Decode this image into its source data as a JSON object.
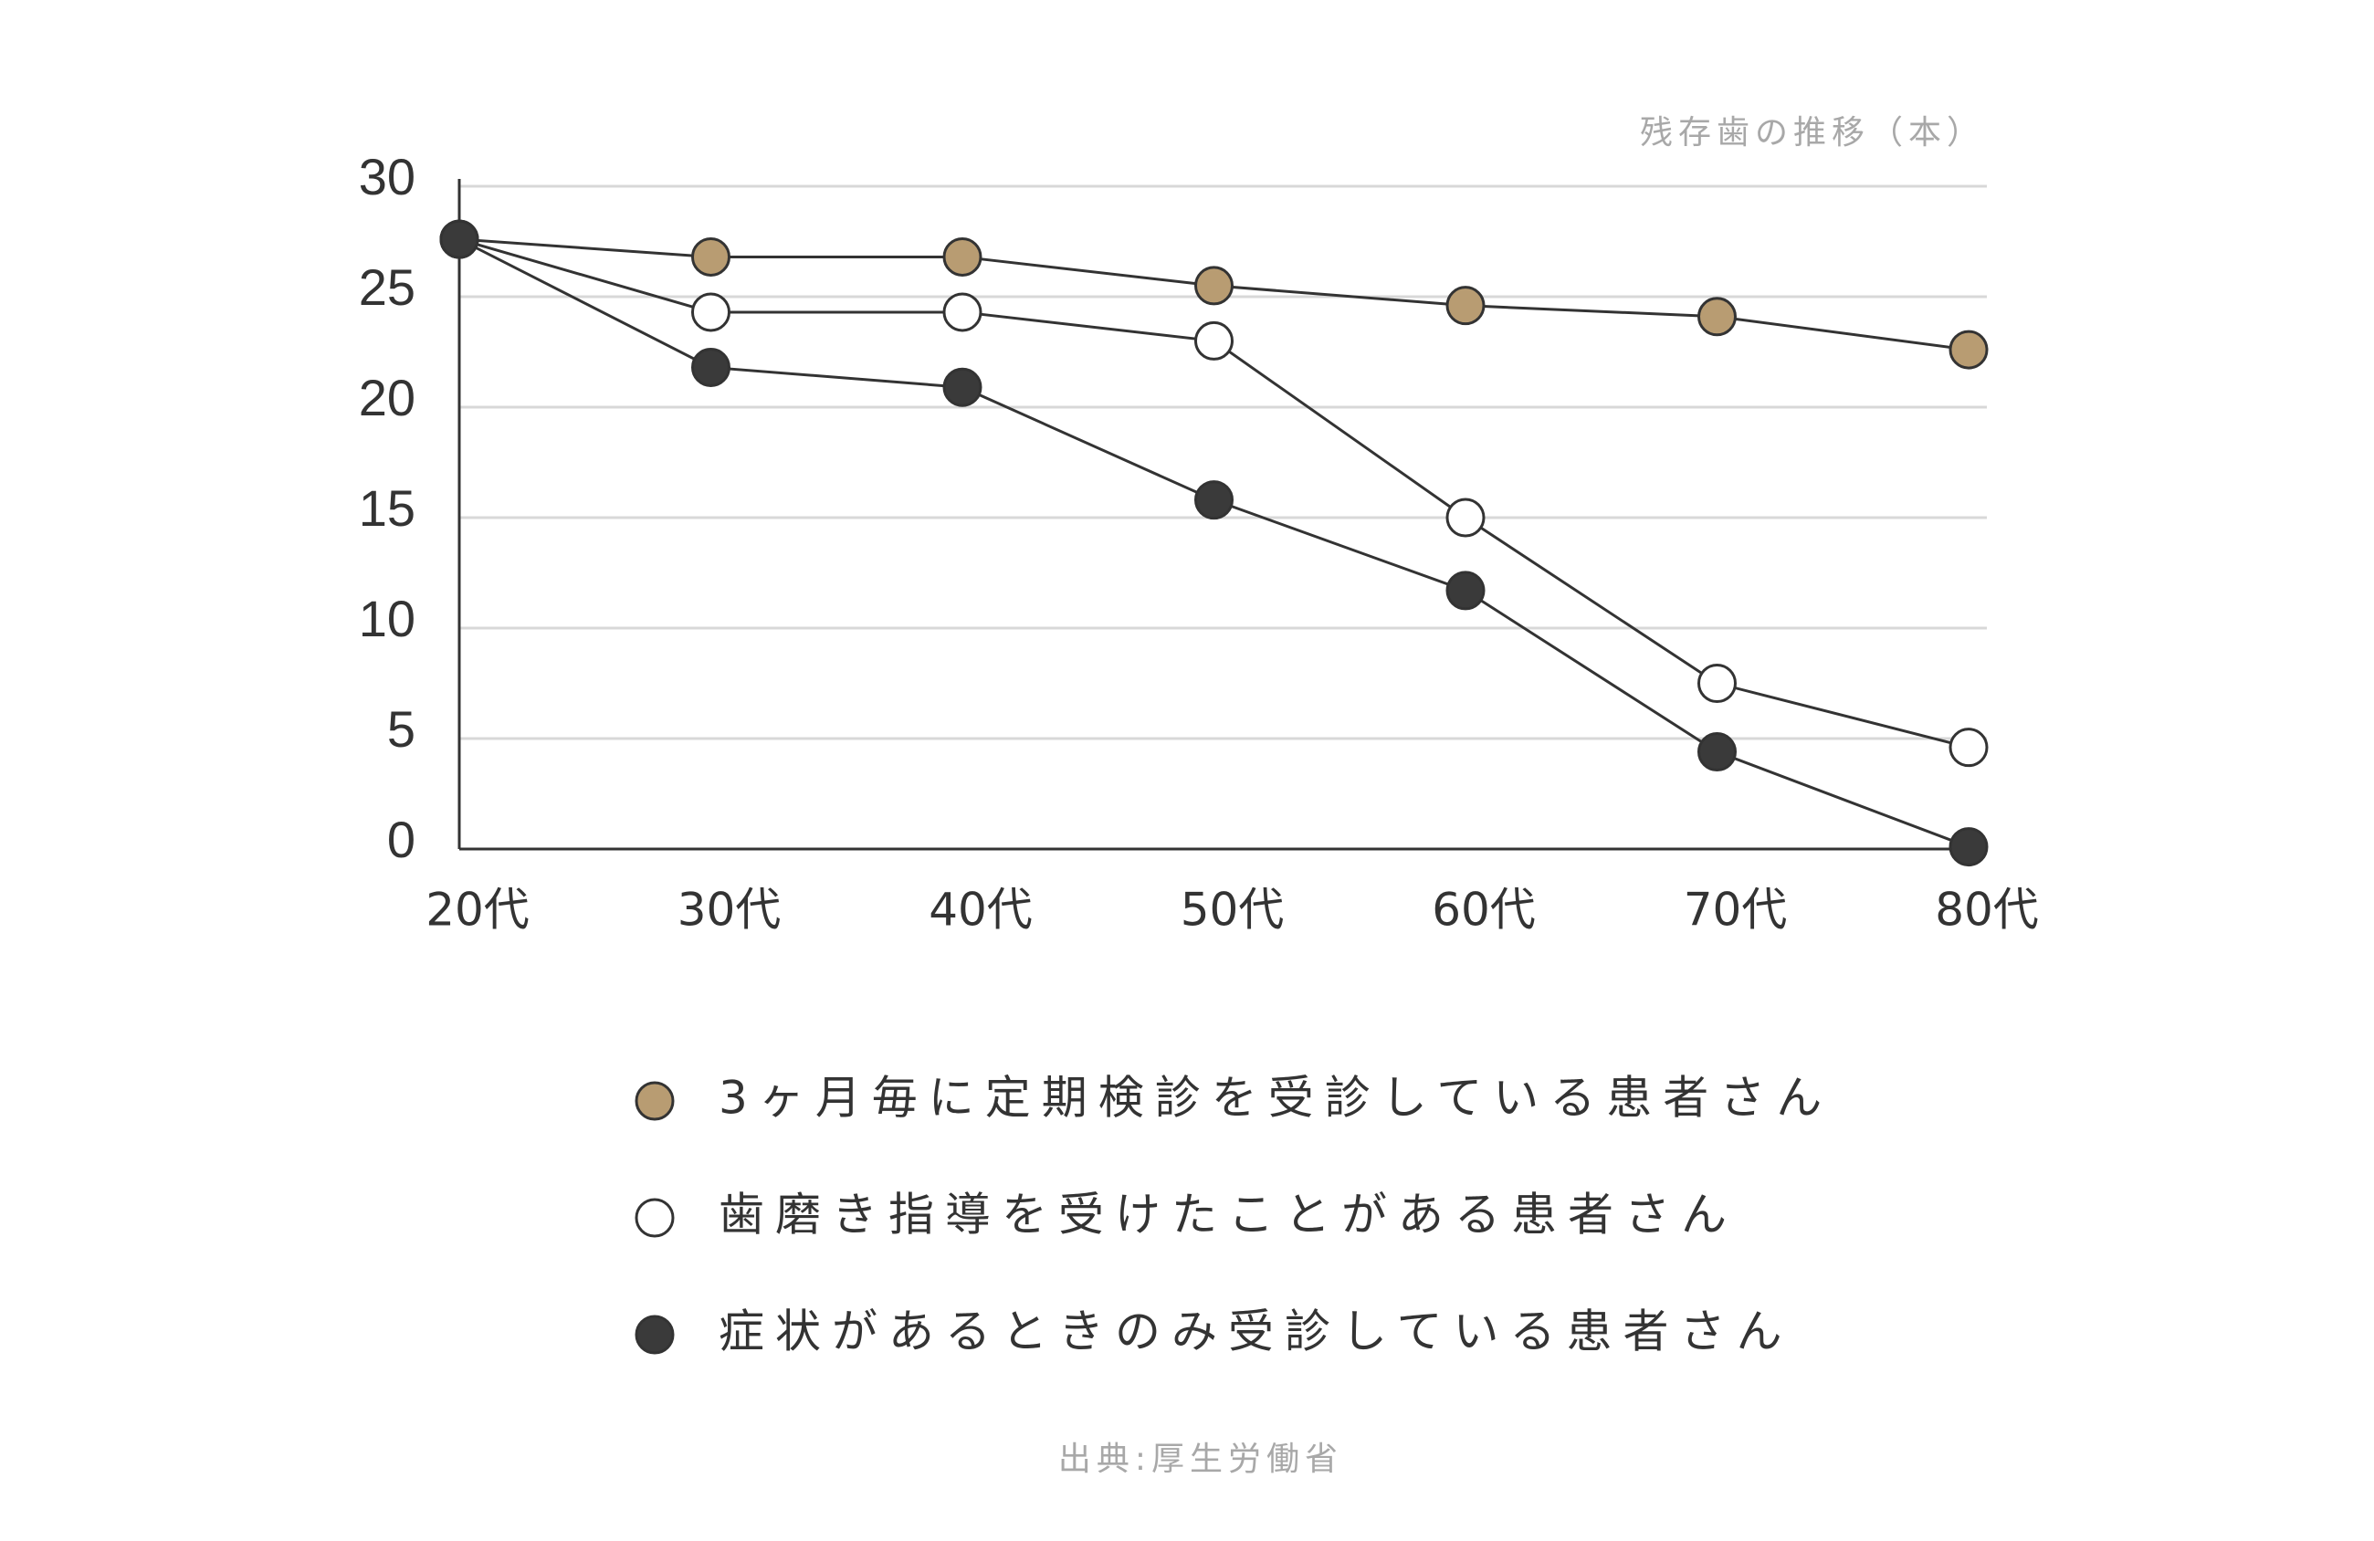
{
  "chart_data": {
    "type": "line",
    "ylabel": "残存歯の推移（本）",
    "source": "出典:厚生労働省",
    "categories": [
      "20代",
      "30代",
      "40代",
      "50代",
      "60代",
      "70代",
      "80代"
    ],
    "series": [
      {
        "name": "3ヶ月毎に定期検診を受診している患者さん",
        "color": "#b89c72",
        "values": [
          27.6,
          26.8,
          26.8,
          25.5,
          24.6,
          24.1,
          22.6
        ]
      },
      {
        "name": "歯磨き指導を受けたことがある患者さん",
        "color": "#ffffff",
        "values": [
          27.6,
          24.3,
          24.3,
          23.0,
          15.0,
          7.5,
          4.6
        ]
      },
      {
        "name": "症状があるときのみ受診している患者さん",
        "color": "#3a3a3a",
        "values": [
          27.6,
          21.8,
          20.9,
          15.8,
          11.7,
          4.4,
          0.1
        ]
      }
    ],
    "ylim": [
      0,
      30
    ],
    "yticks": [
      0,
      5,
      10,
      15,
      20,
      25,
      30
    ],
    "grid": true
  }
}
